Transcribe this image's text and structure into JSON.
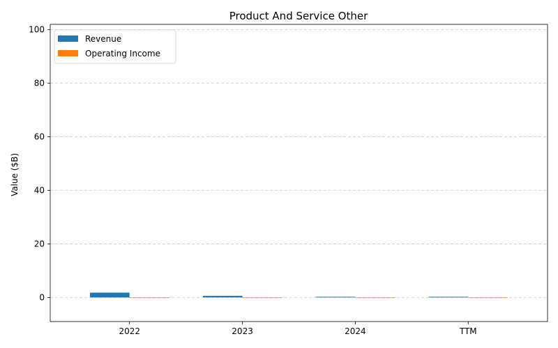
{
  "chart_data": {
    "type": "bar",
    "title": "Product And Service Other",
    "xlabel": "",
    "ylabel": "Value ($B)",
    "categories": [
      "2022",
      "2023",
      "2024",
      "TTM"
    ],
    "series": [
      {
        "name": "Revenue",
        "values": [
          1.8,
          0.6,
          0.25,
          0.25
        ],
        "color": "#1f77b4"
      },
      {
        "name": "Operating Income",
        "values": [
          0,
          0,
          0,
          0
        ],
        "color": "#ff7f0e"
      }
    ],
    "ylim": [
      -9,
      102
    ],
    "yticks": [
      0,
      20,
      40,
      60,
      80,
      100
    ],
    "grid": true,
    "legend": "top-left"
  }
}
